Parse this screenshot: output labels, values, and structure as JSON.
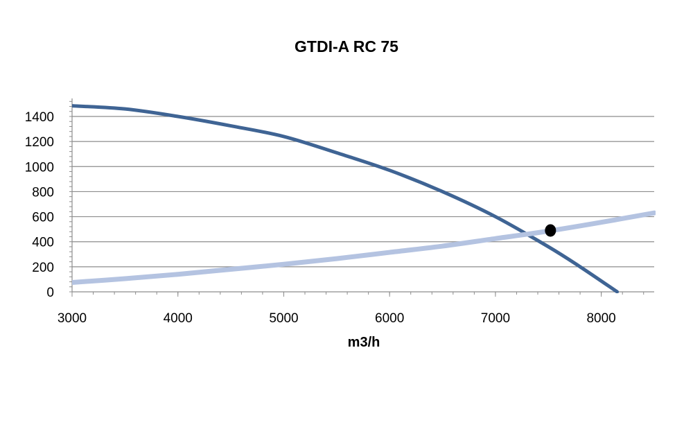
{
  "chart_data": {
    "type": "line",
    "title": "GTDI-A RC 75",
    "xlabel": "m3/h",
    "ylabel": "",
    "xlim": [
      3000,
      8500
    ],
    "ylim": [
      0,
      1400
    ],
    "x_ticks": [
      3000,
      4000,
      5000,
      6000,
      7000,
      8000
    ],
    "y_ticks": [
      0,
      200,
      400,
      600,
      800,
      1000,
      1200,
      1400
    ],
    "grid": true,
    "series": [
      {
        "color": "#3f6494",
        "points": [
          [
            3000,
            1485
          ],
          [
            3500,
            1460
          ],
          [
            4000,
            1400
          ],
          [
            4500,
            1325
          ],
          [
            5000,
            1240
          ],
          [
            5500,
            1110
          ],
          [
            6000,
            970
          ],
          [
            6500,
            800
          ],
          [
            7000,
            600
          ],
          [
            7500,
            360
          ],
          [
            7800,
            200
          ],
          [
            8150,
            0
          ]
        ]
      },
      {
        "color": "#b4c3e1",
        "points": [
          [
            3000,
            75
          ],
          [
            3500,
            105
          ],
          [
            4000,
            140
          ],
          [
            4500,
            180
          ],
          [
            5000,
            220
          ],
          [
            5500,
            265
          ],
          [
            6000,
            315
          ],
          [
            6500,
            365
          ],
          [
            7000,
            425
          ],
          [
            7500,
            485
          ],
          [
            8000,
            555
          ],
          [
            8500,
            630
          ]
        ]
      }
    ],
    "operating_point": {
      "x": 7520,
      "y": 490,
      "color": "#000000"
    }
  }
}
